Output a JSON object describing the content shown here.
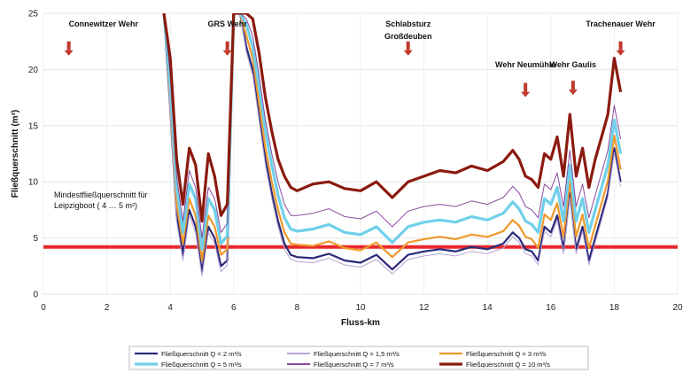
{
  "chart_data": {
    "type": "line",
    "xlabel": "Fluss-km",
    "ylabel": "Fließquerschnitt (m²)",
    "xlim": [
      0,
      20
    ],
    "ylim": [
      0,
      25
    ],
    "x_ticks": [
      0,
      2,
      4,
      6,
      8,
      10,
      12,
      14,
      16,
      18,
      20
    ],
    "y_ticks": [
      0,
      5,
      10,
      15,
      20,
      25
    ],
    "grid": "y",
    "legend_position": "bottom",
    "x": [
      3.8,
      4.0,
      4.2,
      4.4,
      4.6,
      4.8,
      5.0,
      5.2,
      5.4,
      5.6,
      5.8,
      6.0,
      6.2,
      6.4,
      6.6,
      6.8,
      7.0,
      7.2,
      7.4,
      7.6,
      7.8,
      8.0,
      8.5,
      9.0,
      9.5,
      10.0,
      10.5,
      11.0,
      11.5,
      12.0,
      12.5,
      13.0,
      13.5,
      14.0,
      14.5,
      14.8,
      15.0,
      15.2,
      15.4,
      15.6,
      15.8,
      16.0,
      16.2,
      16.4,
      16.6,
      16.8,
      17.0,
      17.2,
      17.4,
      17.6,
      17.8,
      18.0,
      18.2
    ],
    "series": [
      {
        "name": "Fließquerschnitt Q = 2 m³/s",
        "color": "#2a2a7a",
        "width": 2.2,
        "values": [
          25,
          16.5,
          7.0,
          3.5,
          7.5,
          6.0,
          2.0,
          6.0,
          5.0,
          2.5,
          3.0,
          25,
          25,
          22,
          20,
          16,
          12,
          9,
          6.5,
          4.5,
          3.5,
          3.3,
          3.2,
          3.6,
          3.0,
          2.8,
          3.5,
          2.2,
          3.5,
          3.8,
          4.0,
          3.8,
          4.2,
          4.0,
          4.5,
          5.5,
          5.0,
          4.0,
          3.8,
          3.0,
          6.0,
          5.5,
          7.0,
          4.0,
          9.0,
          4.0,
          6.0,
          3.0,
          5.0,
          7.0,
          9.0,
          13.0,
          10.0
        ]
      },
      {
        "name": "Fließquerschnitt Q = 1,5 m³/s",
        "color": "#b7a3d6",
        "width": 1.0,
        "values": [
          25,
          16.0,
          6.5,
          3.0,
          7.0,
          5.5,
          1.6,
          5.5,
          4.5,
          2.0,
          2.6,
          25,
          25,
          21.5,
          19.5,
          15.5,
          11.5,
          8.5,
          6.0,
          4.0,
          3.1,
          2.9,
          2.8,
          3.2,
          2.6,
          2.4,
          3.1,
          1.8,
          3.1,
          3.4,
          3.6,
          3.4,
          3.8,
          3.6,
          4.1,
          5.1,
          4.6,
          3.6,
          3.4,
          2.6,
          5.6,
          5.1,
          6.6,
          3.6,
          8.6,
          3.6,
          5.6,
          2.6,
          4.6,
          6.6,
          8.6,
          12.6,
          9.6
        ]
      },
      {
        "name": "Fließquerschnitt Q = 3 m³/s",
        "color": "#f0982c",
        "width": 2.2,
        "values": [
          25,
          17.5,
          8.0,
          4.5,
          8.5,
          7.0,
          3.0,
          7.0,
          6.0,
          3.5,
          4.0,
          25,
          25,
          23,
          21,
          17,
          13,
          10,
          7.5,
          5.5,
          4.5,
          4.4,
          4.3,
          4.7,
          4.1,
          3.9,
          4.6,
          3.3,
          4.6,
          4.9,
          5.1,
          4.9,
          5.3,
          5.1,
          5.6,
          6.6,
          6.1,
          5.1,
          4.9,
          4.1,
          7.1,
          6.6,
          8.1,
          5.1,
          10.1,
          5.1,
          7.1,
          4.1,
          6.1,
          8.1,
          10.1,
          14.1,
          11.1
        ]
      },
      {
        "name": "Fließquerschnitt Q = 5 m³/s",
        "color": "#6fd0ea",
        "width": 3.2,
        "values": [
          25,
          18.5,
          9.5,
          5.5,
          9.8,
          8.5,
          4.0,
          8.5,
          7.5,
          4.5,
          5.2,
          25,
          25,
          24,
          22,
          18.5,
          14.5,
          11.5,
          8.8,
          6.8,
          5.8,
          5.6,
          5.8,
          6.2,
          5.5,
          5.3,
          6.0,
          4.6,
          6.0,
          6.4,
          6.6,
          6.4,
          6.9,
          6.6,
          7.2,
          8.2,
          7.6,
          6.5,
          6.2,
          5.5,
          8.5,
          8.0,
          9.5,
          6.5,
          11.5,
          6.5,
          8.5,
          5.5,
          7.5,
          9.5,
          11.5,
          15.5,
          12.5
        ]
      },
      {
        "name": "Fließquerschnitt Q = 7 m³/s",
        "color": "#8a4a9e",
        "width": 1.0,
        "values": [
          25,
          19.5,
          10.5,
          6.5,
          11.0,
          9.5,
          5.0,
          9.5,
          8.5,
          5.5,
          6.3,
          25,
          25,
          24.5,
          23,
          19.5,
          15.5,
          12.5,
          10.0,
          8.0,
          7.0,
          7.0,
          7.2,
          7.6,
          6.9,
          6.7,
          7.4,
          6.0,
          7.4,
          7.8,
          8.0,
          7.8,
          8.3,
          8.0,
          8.6,
          9.6,
          9.0,
          7.8,
          7.5,
          6.8,
          9.8,
          9.3,
          10.8,
          7.8,
          12.8,
          7.8,
          9.8,
          6.8,
          8.8,
          10.8,
          12.8,
          16.8,
          13.8
        ]
      },
      {
        "name": "Fließquerschnitt Q = 10 m³/s",
        "color": "#8b1a0e",
        "width": 3.2,
        "values": [
          25,
          21.0,
          12.0,
          8.0,
          13.0,
          11.5,
          6.5,
          12.5,
          10.5,
          7.0,
          8.0,
          25,
          25,
          25,
          24.5,
          21.5,
          17.5,
          14.5,
          12.0,
          10.5,
          9.5,
          9.2,
          9.8,
          10.0,
          9.4,
          9.2,
          10.0,
          8.6,
          10.0,
          10.5,
          11.0,
          10.8,
          11.4,
          11.0,
          11.8,
          12.8,
          12.0,
          10.5,
          10.2,
          9.5,
          12.5,
          12.0,
          14.0,
          10.5,
          16.0,
          10.5,
          13.0,
          9.5,
          12.0,
          14.0,
          16.0,
          21.0,
          18.0
        ]
      }
    ],
    "threshold": {
      "value": 4.2,
      "color": "#e8282b"
    },
    "threshold_label_lines": [
      "Mindestfließquerschnitt für",
      "Leipzigboot ( 4 … 5 m²)"
    ],
    "annotations": [
      {
        "text": "Connewitzer Wehr",
        "x": 0.8,
        "y": 23.8,
        "arrow_top": 22.5
      },
      {
        "text": "GRS Wehr",
        "x": 5.8,
        "y": 23.8,
        "arrow_top": 22.5
      },
      {
        "text": "Schlabsturz",
        "x": 11.5,
        "y": 23.8,
        "arrow_top": 22.5
      },
      {
        "text": "Großdeuben",
        "x": 11.5,
        "y": 22.7
      },
      {
        "text": "Wehr Neumühle",
        "x": 15.2,
        "y": 20.2,
        "arrow_top": 18.8
      },
      {
        "text": "Wehr Gaulis",
        "x": 16.7,
        "y": 20.2,
        "arrow_top": 19.0
      },
      {
        "text": "Trachenauer Wehr",
        "x": 18.2,
        "y": 23.8,
        "arrow_top": 22.5
      }
    ]
  }
}
